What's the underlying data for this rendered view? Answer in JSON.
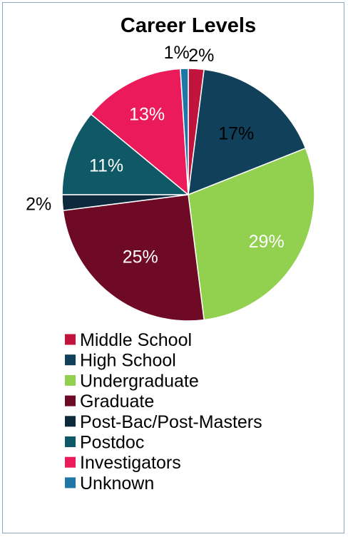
{
  "chart_data": {
    "type": "pie",
    "title": "Career Levels",
    "legend_position": "bottom",
    "slices": [
      {
        "name": "Middle School",
        "value": 2,
        "label": "2%",
        "color": "#c0143c"
      },
      {
        "name": "High School",
        "value": 17,
        "label": "17%",
        "color": "#11405a"
      },
      {
        "name": "Undergraduate",
        "value": 29,
        "label": "29%",
        "color": "#92d050"
      },
      {
        "name": "Graduate",
        "value": 25,
        "label": "25%",
        "color": "#6e0a26"
      },
      {
        "name": "Post-Bac/Post-Masters",
        "value": 2,
        "label": "2%",
        "color": "#0c2a3c"
      },
      {
        "name": "Postdoc",
        "value": 11,
        "label": "11%",
        "color": "#0f5866"
      },
      {
        "name": "Investigators",
        "value": 13,
        "label": "13%",
        "color": "#eb1a5a"
      },
      {
        "name": "Unknown",
        "value": 1,
        "label": "1%",
        "color": "#1f77a8"
      }
    ]
  }
}
